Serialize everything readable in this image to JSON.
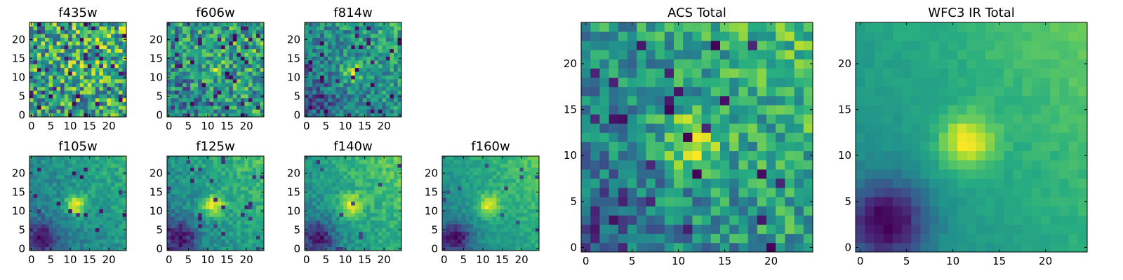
{
  "figure": {
    "panels": [
      {
        "title": "f435w",
        "size": "small",
        "row": 0,
        "col": 0,
        "xticks": [
          0,
          5,
          10,
          15,
          20
        ],
        "yticks": [
          0,
          5,
          10,
          15,
          20
        ],
        "blob": 0.05,
        "grad": 0.1,
        "low": 0.0,
        "noise": 0.62,
        "seed": 11,
        "deep": 0.06
      },
      {
        "title": "f606w",
        "size": "small",
        "row": 0,
        "col": 1,
        "xticks": [
          0,
          5,
          10,
          15,
          20
        ],
        "yticks": [
          0,
          5,
          10,
          15,
          20
        ],
        "blob": 0.2,
        "grad": 0.18,
        "low": 0.05,
        "noise": 0.55,
        "seed": 23,
        "deep": 0.07
      },
      {
        "title": "f814w",
        "size": "small",
        "row": 0,
        "col": 2,
        "xticks": [
          0,
          5,
          10,
          15,
          20
        ],
        "yticks": [
          0,
          5,
          10,
          15,
          20
        ],
        "blob": 0.4,
        "grad": 0.3,
        "low": 0.12,
        "noise": 0.45,
        "seed": 37,
        "deep": 0.06
      },
      {
        "title": "f105w",
        "size": "small",
        "row": 1,
        "col": 0,
        "xticks": [
          0,
          5,
          10,
          15,
          20
        ],
        "yticks": [
          0,
          5,
          10,
          15,
          20
        ],
        "blob": 0.55,
        "grad": 0.35,
        "low": 0.4,
        "noise": 0.25,
        "seed": 41,
        "deep": 0.03
      },
      {
        "title": "f125w",
        "size": "small",
        "row": 1,
        "col": 1,
        "xticks": [
          0,
          5,
          10,
          15,
          20
        ],
        "yticks": [
          0,
          5,
          10,
          15,
          20
        ],
        "blob": 0.5,
        "grad": 0.4,
        "low": 0.42,
        "noise": 0.25,
        "seed": 53,
        "deep": 0.03
      },
      {
        "title": "f140w",
        "size": "small",
        "row": 1,
        "col": 2,
        "xticks": [
          0,
          5,
          10,
          15,
          20
        ],
        "yticks": [
          0,
          5,
          10,
          15,
          20
        ],
        "blob": 0.5,
        "grad": 0.42,
        "low": 0.45,
        "noise": 0.22,
        "seed": 67,
        "deep": 0.02
      },
      {
        "title": "f160w",
        "size": "small",
        "row": 1,
        "col": 3,
        "xticks": [
          0,
          5,
          10,
          15,
          20
        ],
        "yticks": [
          0,
          5,
          10,
          15,
          20
        ],
        "blob": 0.55,
        "grad": 0.45,
        "low": 0.55,
        "noise": 0.2,
        "seed": 71,
        "deep": 0.02
      },
      {
        "title": "ACS Total",
        "size": "large",
        "col": 0,
        "xticks": [
          0,
          5,
          10,
          15,
          20
        ],
        "yticks": [
          0,
          5,
          10,
          15,
          20
        ],
        "blob": 0.45,
        "grad": 0.3,
        "low": 0.15,
        "noise": 0.42,
        "seed": 83,
        "deep": 0.05
      },
      {
        "title": "WFC3 IR Total",
        "size": "large",
        "col": 1,
        "xticks": [
          0,
          5,
          10,
          15,
          20
        ],
        "yticks": [
          0,
          5,
          10,
          15,
          20
        ],
        "blob": 0.6,
        "grad": 0.45,
        "low": 0.7,
        "noise": 0.1,
        "seed": 97,
        "deep": 0.0
      }
    ]
  },
  "chart_data": {
    "type": "heatmap",
    "grid_size": [
      25,
      25
    ],
    "colormap": "viridis",
    "xlim": [
      -0.5,
      24.5
    ],
    "ylim": [
      -0.5,
      24.5
    ],
    "colors": {
      "low": "#440154",
      "mid": "#21908d",
      "high": "#fde725"
    }
  }
}
